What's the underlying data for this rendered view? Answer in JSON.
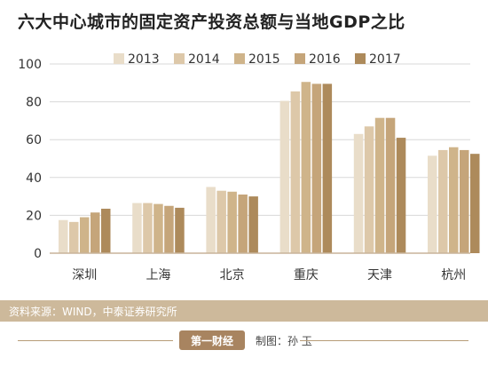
{
  "title": "六大中心城市的固定资产投资总额与当地GDP之比",
  "source": "资料来源：WIND，中泰证券研究所",
  "brand": "第一财经",
  "credit": "制图：孙 玉",
  "colors": {
    "series": [
      "#e9ddc9",
      "#ddc8a9",
      "#cfb48a",
      "#c5a57a",
      "#ad8a5b"
    ],
    "grid": "#d8d8d8",
    "axis": "#c8b49a",
    "tick_text": "#333333",
    "footer_bar": "#cdb99b"
  },
  "chart_data": {
    "type": "bar",
    "title": "六大中心城市的固定资产投资总额与当地GDP之比",
    "xlabel": "",
    "ylabel": "",
    "ylim": [
      0,
      100
    ],
    "yticks": [
      0,
      20,
      40,
      60,
      80,
      100
    ],
    "grid": true,
    "legend": "top",
    "categories": [
      "深圳",
      "上海",
      "北京",
      "重庆",
      "天津",
      "杭州"
    ],
    "series": [
      {
        "name": "2013",
        "values": [
          17.5,
          26.5,
          35,
          80.5,
          63,
          51.5
        ]
      },
      {
        "name": "2014",
        "values": [
          16.5,
          26.5,
          33,
          85.5,
          67,
          54.5
        ]
      },
      {
        "name": "2015",
        "values": [
          19,
          26,
          32.5,
          90.5,
          71.5,
          56
        ]
      },
      {
        "name": "2016",
        "values": [
          21.5,
          25,
          31,
          89.5,
          71.5,
          54.5
        ]
      },
      {
        "name": "2017",
        "values": [
          23.5,
          24,
          30,
          89.5,
          61,
          52.5
        ]
      }
    ]
  }
}
